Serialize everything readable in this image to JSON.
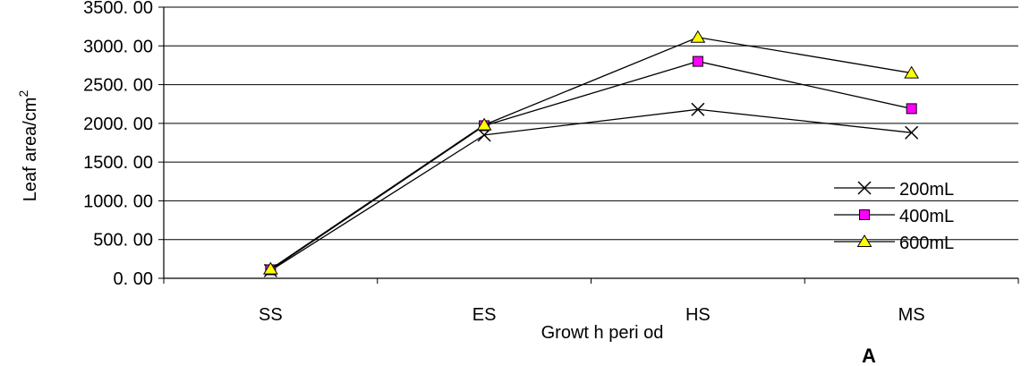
{
  "chart_data": {
    "type": "line",
    "categories": [
      "SS",
      "ES",
      "HS",
      "MS"
    ],
    "series": [
      {
        "name": "200mL",
        "values": [
          100,
          1850,
          2180,
          1880
        ],
        "marker": "x",
        "color": "#000000"
      },
      {
        "name": "400mL",
        "values": [
          110,
          1970,
          2800,
          2190
        ],
        "marker": "square",
        "color": "#ff00ff"
      },
      {
        "name": "600mL",
        "values": [
          120,
          1980,
          3110,
          2650
        ],
        "marker": "triangle",
        "color": "#ffff00"
      }
    ],
    "ylim": [
      0,
      3500
    ],
    "yticks": [
      "0. 00",
      "500. 00",
      "1000. 00",
      "1500. 00",
      "2000. 00",
      "2500. 00",
      "3000. 00",
      "3500. 00"
    ],
    "xlabel": "Growt h peri od",
    "ylabel": "Leaf area/cm",
    "ylabel_superscript": "2",
    "grid": true,
    "legend_position": "right",
    "panel_label": "A"
  }
}
